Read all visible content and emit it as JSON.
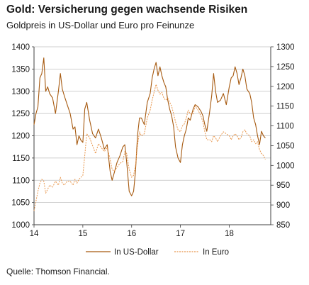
{
  "header": {
    "title": "Gold: Versicherung gegen wachsende Risiken",
    "subtitle": "Goldpreis in US-Dollar und Euro pro Feinunze"
  },
  "footer": {
    "source": "Quelle: Thomson Financial."
  },
  "colors": {
    "usd": "#a6590f",
    "eur": "#e8954a",
    "grid": "#bfbfbf",
    "axis": "#404040"
  },
  "chart_data": {
    "type": "line",
    "x_ticks": [
      "14",
      "15",
      "16",
      "17",
      "18"
    ],
    "x_range": [
      2014.0,
      2018.85
    ],
    "y_left": {
      "ticks": [
        1000,
        1050,
        1100,
        1150,
        1200,
        1250,
        1300,
        1350,
        1400
      ],
      "range": [
        1000,
        1400
      ]
    },
    "y_right": {
      "ticks": [
        850,
        900,
        950,
        1000,
        1050,
        1100,
        1150,
        1200,
        1250,
        1300
      ],
      "range": [
        850,
        1300
      ]
    },
    "grid": "horizontal",
    "legend_position": "bottom",
    "series": [
      {
        "name": "In US-Dollar",
        "axis": "left",
        "style": "solid",
        "x": [
          2014.0,
          2014.04,
          2014.08,
          2014.12,
          2014.16,
          2014.2,
          2014.24,
          2014.28,
          2014.32,
          2014.38,
          2014.44,
          2014.5,
          2014.54,
          2014.58,
          2014.62,
          2014.68,
          2014.74,
          2014.8,
          2014.84,
          2014.88,
          2014.92,
          2014.96,
          2015.0,
          2015.04,
          2015.08,
          2015.14,
          2015.2,
          2015.26,
          2015.32,
          2015.38,
          2015.44,
          2015.5,
          2015.56,
          2015.6,
          2015.64,
          2015.7,
          2015.76,
          2015.82,
          2015.86,
          2015.9,
          2015.95,
          2016.0,
          2016.04,
          2016.08,
          2016.12,
          2016.16,
          2016.2,
          2016.26,
          2016.32,
          2016.38,
          2016.42,
          2016.46,
          2016.5,
          2016.54,
          2016.58,
          2016.62,
          2016.66,
          2016.7,
          2016.74,
          2016.78,
          2016.82,
          2016.86,
          2016.9,
          2016.95,
          2017.0,
          2017.04,
          2017.08,
          2017.12,
          2017.16,
          2017.2,
          2017.26,
          2017.3,
          2017.36,
          2017.42,
          2017.46,
          2017.5,
          2017.54,
          2017.6,
          2017.64,
          2017.68,
          2017.72,
          2017.76,
          2017.82,
          2017.88,
          2017.94,
          2018.0,
          2018.04,
          2018.08,
          2018.12,
          2018.16,
          2018.2,
          2018.24,
          2018.28,
          2018.32,
          2018.36,
          2018.42,
          2018.46,
          2018.5,
          2018.54,
          2018.58,
          2018.62,
          2018.66,
          2018.7,
          2018.74
        ],
        "values": [
          1225,
          1250,
          1265,
          1330,
          1340,
          1375,
          1300,
          1310,
          1295,
          1285,
          1250,
          1300,
          1340,
          1305,
          1290,
          1270,
          1250,
          1215,
          1220,
          1180,
          1200,
          1190,
          1185,
          1260,
          1275,
          1235,
          1205,
          1195,
          1215,
          1195,
          1170,
          1180,
          1120,
          1100,
          1115,
          1140,
          1155,
          1175,
          1180,
          1140,
          1075,
          1065,
          1075,
          1120,
          1200,
          1240,
          1240,
          1225,
          1275,
          1295,
          1330,
          1350,
          1365,
          1335,
          1355,
          1335,
          1320,
          1310,
          1280,
          1260,
          1245,
          1220,
          1175,
          1150,
          1140,
          1180,
          1200,
          1215,
          1240,
          1235,
          1260,
          1270,
          1265,
          1255,
          1245,
          1225,
          1210,
          1255,
          1290,
          1340,
          1300,
          1275,
          1280,
          1295,
          1270,
          1310,
          1330,
          1335,
          1355,
          1340,
          1315,
          1330,
          1350,
          1335,
          1305,
          1295,
          1275,
          1240,
          1225,
          1200,
          1180,
          1210,
          1200,
          1195
        ]
      },
      {
        "name": "In Euro",
        "axis": "right",
        "style": "dashed",
        "x": [
          2014.0,
          2014.04,
          2014.08,
          2014.12,
          2014.16,
          2014.2,
          2014.24,
          2014.28,
          2014.32,
          2014.38,
          2014.44,
          2014.5,
          2014.54,
          2014.58,
          2014.62,
          2014.68,
          2014.74,
          2014.8,
          2014.84,
          2014.88,
          2014.92,
          2014.96,
          2015.0,
          2015.04,
          2015.08,
          2015.14,
          2015.2,
          2015.26,
          2015.32,
          2015.38,
          2015.44,
          2015.5,
          2015.56,
          2015.6,
          2015.64,
          2015.7,
          2015.76,
          2015.82,
          2015.86,
          2015.9,
          2015.95,
          2016.0,
          2016.04,
          2016.08,
          2016.12,
          2016.16,
          2016.2,
          2016.26,
          2016.32,
          2016.38,
          2016.42,
          2016.46,
          2016.5,
          2016.54,
          2016.58,
          2016.62,
          2016.66,
          2016.7,
          2016.74,
          2016.78,
          2016.82,
          2016.86,
          2016.9,
          2016.95,
          2017.0,
          2017.04,
          2017.08,
          2017.12,
          2017.16,
          2017.2,
          2017.26,
          2017.3,
          2017.36,
          2017.42,
          2017.46,
          2017.5,
          2017.54,
          2017.6,
          2017.64,
          2017.68,
          2017.72,
          2017.76,
          2017.82,
          2017.88,
          2017.94,
          2018.0,
          2018.04,
          2018.08,
          2018.12,
          2018.16,
          2018.2,
          2018.24,
          2018.28,
          2018.32,
          2018.36,
          2018.42,
          2018.46,
          2018.5,
          2018.54,
          2018.58,
          2018.62,
          2018.66,
          2018.7,
          2018.74
        ],
        "values": [
          885,
          910,
          935,
          955,
          965,
          960,
          930,
          940,
          950,
          945,
          960,
          950,
          970,
          955,
          950,
          960,
          960,
          950,
          965,
          955,
          965,
          970,
          975,
          1025,
          1080,
          1070,
          1050,
          1030,
          1055,
          1045,
          1035,
          1045,
          1015,
          990,
          985,
          995,
          1005,
          1010,
          1035,
          1030,
          990,
          970,
          975,
          1000,
          1050,
          1085,
          1075,
          1080,
          1120,
          1140,
          1165,
          1185,
          1205,
          1190,
          1180,
          1185,
          1170,
          1165,
          1170,
          1160,
          1150,
          1130,
          1110,
          1090,
          1085,
          1100,
          1105,
          1120,
          1140,
          1130,
          1130,
          1150,
          1140,
          1125,
          1110,
          1085,
          1065,
          1065,
          1060,
          1075,
          1070,
          1060,
          1075,
          1085,
          1080,
          1075,
          1065,
          1075,
          1080,
          1075,
          1065,
          1070,
          1085,
          1090,
          1080,
          1075,
          1060,
          1065,
          1055,
          1060,
          1040,
          1030,
          1025,
          1015
        ]
      }
    ]
  }
}
